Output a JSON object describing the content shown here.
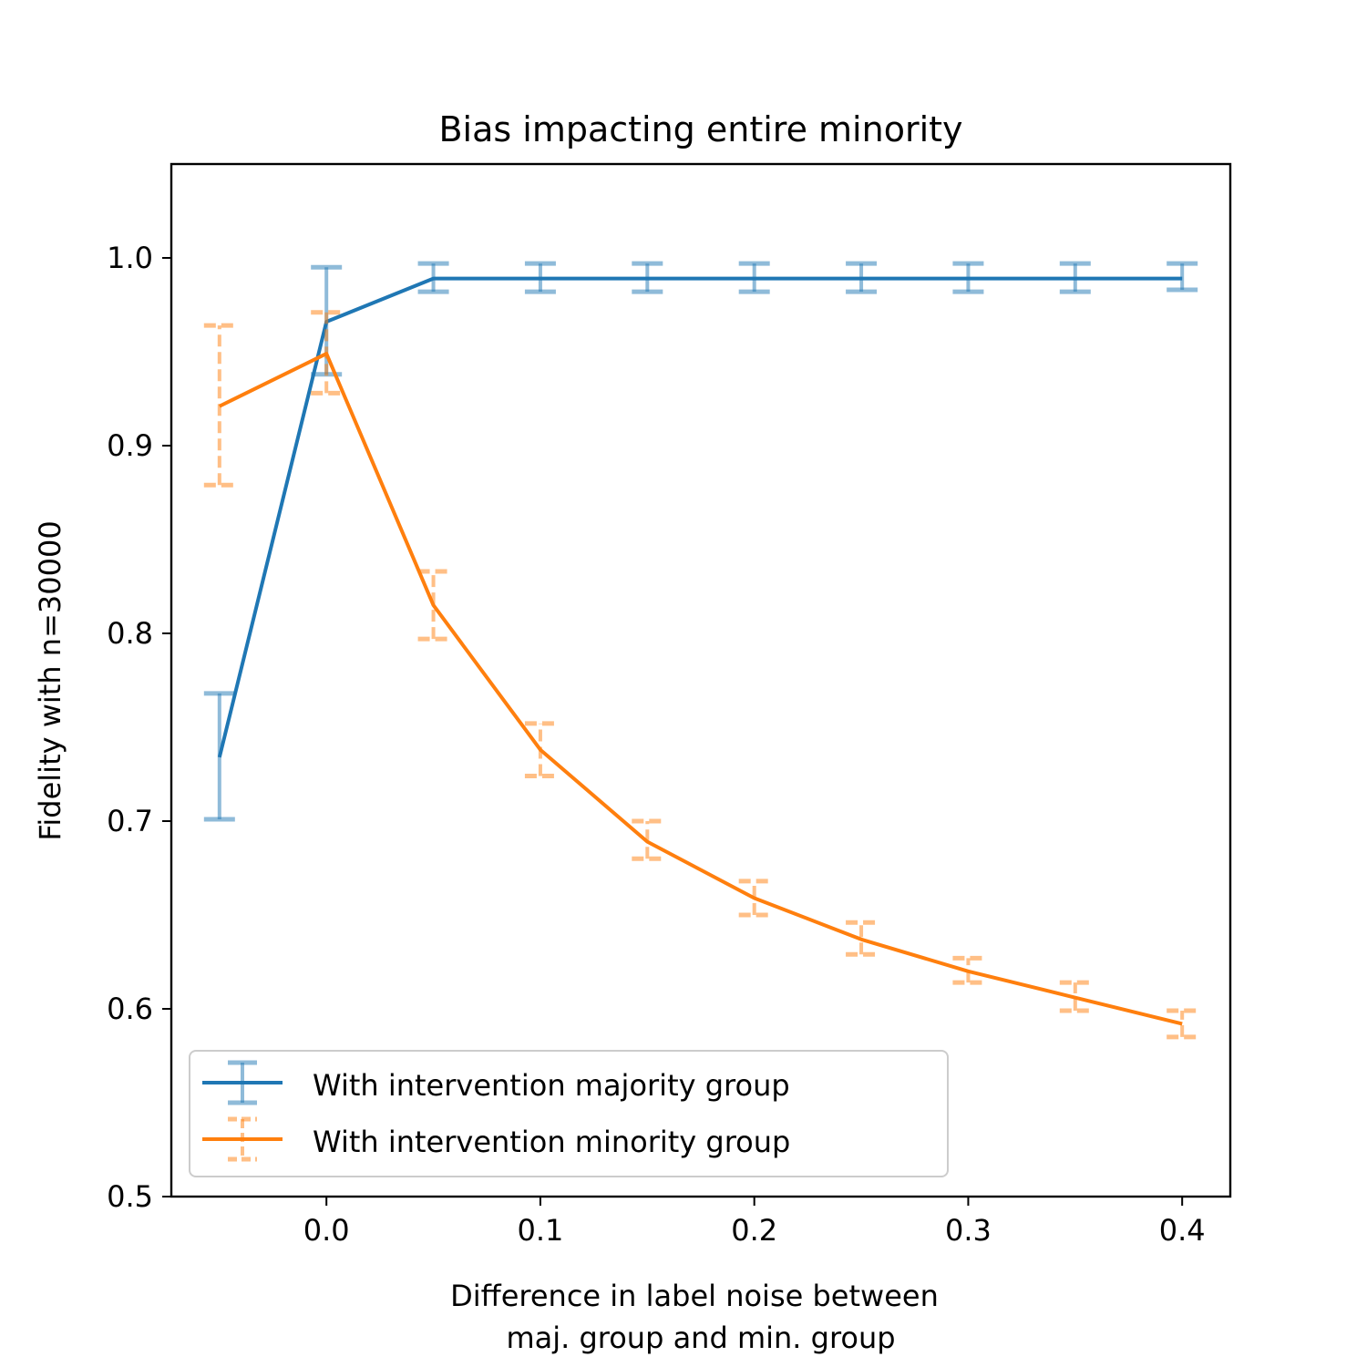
{
  "chart_data": {
    "type": "line",
    "title": "Bias impacting entire minority",
    "xlabel": [
      "Difference in label noise between",
      "maj. group and min. group"
    ],
    "ylabel": "Fidelity with n=30000",
    "xlim": [
      -0.0725,
      0.4225
    ],
    "ylim": [
      0.5,
      1.05
    ],
    "x_ticks": [
      0.0,
      0.1,
      0.2,
      0.3,
      0.4
    ],
    "x_tick_labels": [
      "0.0",
      "0.1",
      "0.2",
      "0.3",
      "0.4"
    ],
    "y_ticks": [
      0.5,
      0.6,
      0.7,
      0.8,
      0.9,
      1.0
    ],
    "y_tick_labels": [
      "0.5",
      "0.6",
      "0.7",
      "0.8",
      "0.9",
      "1.0"
    ],
    "grid": false,
    "legend_position": "lower-left",
    "x": [
      -0.05,
      0.0,
      0.05,
      0.1,
      0.15,
      0.2,
      0.25,
      0.3,
      0.35,
      0.4
    ],
    "series": [
      {
        "name": "With intervention majority group",
        "color": "#1f77b4",
        "errorbar_style": "solid",
        "values": [
          0.734,
          0.966,
          0.989,
          0.989,
          0.989,
          0.989,
          0.989,
          0.989,
          0.989,
          0.989
        ],
        "lower": [
          0.701,
          0.938,
          0.982,
          0.982,
          0.982,
          0.982,
          0.982,
          0.982,
          0.982,
          0.983
        ],
        "upper": [
          0.768,
          0.995,
          0.997,
          0.997,
          0.997,
          0.997,
          0.997,
          0.997,
          0.997,
          0.997
        ]
      },
      {
        "name": "With intervention minority group",
        "color": "#ff7f0e",
        "errorbar_style": "dashed",
        "values": [
          0.921,
          0.949,
          0.815,
          0.738,
          0.689,
          0.659,
          0.637,
          0.62,
          0.606,
          0.592
        ],
        "lower": [
          0.879,
          0.928,
          0.797,
          0.724,
          0.68,
          0.65,
          0.629,
          0.614,
          0.599,
          0.585
        ],
        "upper": [
          0.964,
          0.971,
          0.833,
          0.752,
          0.7,
          0.668,
          0.646,
          0.627,
          0.614,
          0.599
        ]
      }
    ]
  }
}
